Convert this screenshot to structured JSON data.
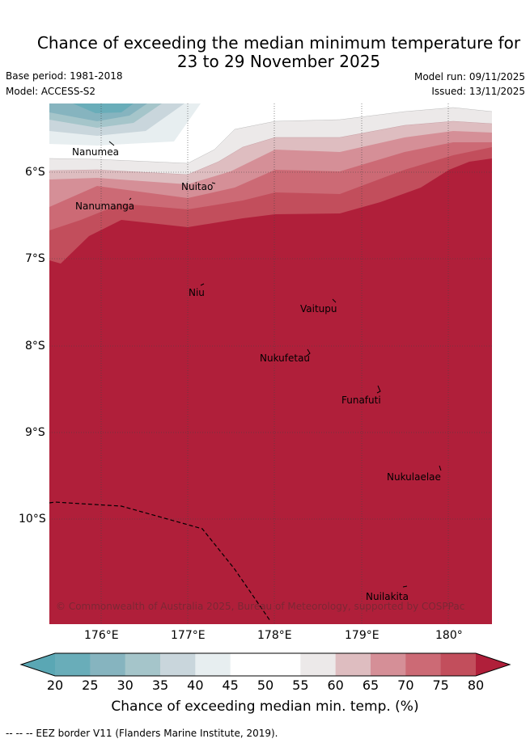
{
  "title": {
    "line1": "Chance of exceeding the median minimum temperature for",
    "line2": "23 to 29 November 2025"
  },
  "meta": {
    "base_period": "Base period: 1981-2018",
    "model": "Model: ACCESS-S2",
    "model_run": "Model run: 09/11/2025",
    "issued": "Issued: 13/11/2025"
  },
  "map": {
    "lat_labels": [
      "6°S",
      "7°S",
      "8°S",
      "9°S",
      "10°S"
    ],
    "lon_labels": [
      "176°E",
      "177°E",
      "178°E",
      "179°E",
      "180°"
    ],
    "places": [
      "Nanumea",
      "Nanumanga",
      "Nuitao",
      "Niu",
      "Vaitupu",
      "Nukufetau",
      "Funafuti",
      "Nukulaelae",
      "Nuilakita"
    ],
    "copyright": "© Commonwealth of Australia 2025, Bureau of Meteorology, supported by COSPPac"
  },
  "colorbar": {
    "ticks": [
      "20",
      "25",
      "30",
      "35",
      "40",
      "45",
      "50",
      "55",
      "60",
      "65",
      "70",
      "75",
      "80"
    ],
    "colors": [
      "#69adb9",
      "#86b4bf",
      "#a5c5ca",
      "#c9d6dc",
      "#e7eef0",
      "#ffffff",
      "#ffffff",
      "#ece9e9",
      "#debdc0",
      "#d58f97",
      "#cc6a75",
      "#c24e5c"
    ],
    "under_color": "#5aa7b4",
    "over_color": "#b01f3a",
    "label": "Chance of exceeding median min. temp. (%)"
  },
  "footer": {
    "eez_legend": "-- -- -- EEZ border V11 (Flanders Marine Institute, 2019)."
  }
}
